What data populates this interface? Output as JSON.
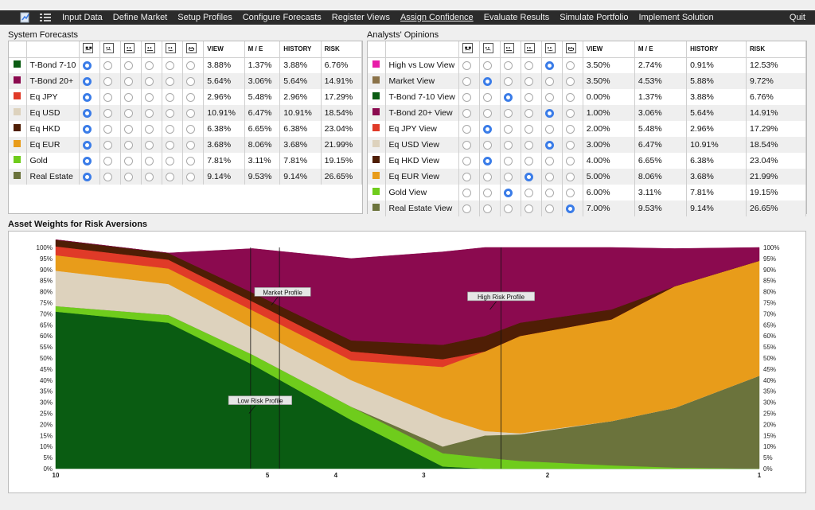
{
  "menu": {
    "items": [
      "Input Data",
      "Define Market",
      "Setup Profiles",
      "Configure Forecasts",
      "Register Views",
      "Assign Confidence",
      "Evaluate Results",
      "Simulate Portfolio",
      "Implement Solution"
    ],
    "active": "Assign Confidence",
    "quit": "Quit"
  },
  "system_forecasts": {
    "title": "System Forecasts",
    "columns": [
      "VIEW",
      "M / E",
      "HISTORY",
      "RISK"
    ],
    "rows": [
      {
        "color": "#0a5c12",
        "name": "T-Bond 7-10",
        "sel": 0,
        "view": "3.88%",
        "me": "1.37%",
        "history": "3.88%",
        "risk": "6.76%"
      },
      {
        "color": "#8b0a4f",
        "name": "T-Bond 20+",
        "sel": 0,
        "view": "5.64%",
        "me": "3.06%",
        "history": "5.64%",
        "risk": "14.91%"
      },
      {
        "color": "#e03a28",
        "name": "Eq JPY",
        "sel": 0,
        "view": "2.96%",
        "me": "5.48%",
        "history": "2.96%",
        "risk": "17.29%"
      },
      {
        "color": "#ddd2bd",
        "name": "Eq USD",
        "sel": 0,
        "view": "10.91%",
        "me": "6.47%",
        "history": "10.91%",
        "risk": "18.54%"
      },
      {
        "color": "#4f1e05",
        "name": "Eq HKD",
        "sel": 0,
        "view": "6.38%",
        "me": "6.65%",
        "history": "6.38%",
        "risk": "23.04%"
      },
      {
        "color": "#e89c1a",
        "name": "Eq EUR",
        "sel": 0,
        "view": "3.68%",
        "me": "8.06%",
        "history": "3.68%",
        "risk": "21.99%"
      },
      {
        "color": "#6fcc1c",
        "name": "Gold",
        "sel": 0,
        "view": "7.81%",
        "me": "3.11%",
        "history": "7.81%",
        "risk": "19.15%"
      },
      {
        "color": "#6b733c",
        "name": "Real Estate",
        "sel": 0,
        "view": "9.14%",
        "me": "9.53%",
        "history": "9.14%",
        "risk": "26.65%"
      }
    ]
  },
  "analysts_opinions": {
    "title": "Analysts' Opinions",
    "columns": [
      "VIEW",
      "M / E",
      "HISTORY",
      "RISK"
    ],
    "rows": [
      {
        "color": "#e81ca8",
        "name": "High vs Low View",
        "sel": 4,
        "view": "3.50%",
        "me": "2.74%",
        "history": "0.91%",
        "risk": "12.53%"
      },
      {
        "color": "#8a7248",
        "name": "Market View",
        "sel": 1,
        "view": "3.50%",
        "me": "4.53%",
        "history": "5.88%",
        "risk": "9.72%"
      },
      {
        "color": "#0a5c12",
        "name": "T-Bond 7-10 View",
        "sel": 2,
        "view": "0.00%",
        "me": "1.37%",
        "history": "3.88%",
        "risk": "6.76%"
      },
      {
        "color": "#8b0a4f",
        "name": "T-Bond 20+ View",
        "sel": 4,
        "view": "1.00%",
        "me": "3.06%",
        "history": "5.64%",
        "risk": "14.91%"
      },
      {
        "color": "#e03a28",
        "name": "Eq JPY View",
        "sel": 1,
        "view": "2.00%",
        "me": "5.48%",
        "history": "2.96%",
        "risk": "17.29%"
      },
      {
        "color": "#ddd2bd",
        "name": "Eq USD View",
        "sel": 4,
        "view": "3.00%",
        "me": "6.47%",
        "history": "10.91%",
        "risk": "18.54%"
      },
      {
        "color": "#4f1e05",
        "name": "Eq HKD View",
        "sel": 1,
        "view": "4.00%",
        "me": "6.65%",
        "history": "6.38%",
        "risk": "23.04%"
      },
      {
        "color": "#e89c1a",
        "name": "Eq EUR View",
        "sel": 3,
        "view": "5.00%",
        "me": "8.06%",
        "history": "3.68%",
        "risk": "21.99%"
      },
      {
        "color": "#6fcc1c",
        "name": "Gold View",
        "sel": 2,
        "view": "6.00%",
        "me": "3.11%",
        "history": "7.81%",
        "risk": "19.15%"
      },
      {
        "color": "#6b733c",
        "name": "Real Estate View",
        "sel": 5,
        "view": "7.00%",
        "me": "9.53%",
        "history": "9.14%",
        "risk": "26.65%"
      }
    ]
  },
  "chart_title": "Asset Weights for Risk Aversions",
  "chart_data": {
    "type": "area",
    "title": "Asset Weights for Risk Aversions",
    "x_ticks": [
      "10",
      "5",
      "4",
      "3",
      "2",
      "1"
    ],
    "y_ticks": [
      "0%",
      "5%",
      "10%",
      "15%",
      "20%",
      "25%",
      "30%",
      "35%",
      "40%",
      "45%",
      "50%",
      "55%",
      "60%",
      "65%",
      "70%",
      "75%",
      "80%",
      "85%",
      "90%",
      "95%",
      "100%"
    ],
    "ylim": [
      0,
      100
    ],
    "x": [
      0,
      0.16,
      0.28,
      0.42,
      0.55,
      0.61,
      0.66,
      0.79,
      0.88,
      1.0
    ],
    "series": [
      {
        "name": "T-Bond 7-10",
        "color": "#0a5c12",
        "values": [
          71,
          66,
          47,
          22,
          1,
          0,
          0,
          0,
          0,
          0
        ]
      },
      {
        "name": "Gold",
        "color": "#6fcc1c",
        "values": [
          2.5,
          3.5,
          4.5,
          6,
          6,
          5,
          3.5,
          1.5,
          0.5,
          0
        ]
      },
      {
        "name": "Real Estate",
        "color": "#6b733c",
        "values": [
          0,
          0,
          0,
          0,
          3,
          10,
          12,
          20,
          27,
          42
        ]
      },
      {
        "name": "Eq USD",
        "color": "#ddd2bd",
        "values": [
          16,
          14,
          12,
          12,
          13,
          2,
          0.5,
          0,
          0,
          0
        ]
      },
      {
        "name": "Eq EUR",
        "color": "#e89c1a",
        "values": [
          7,
          7,
          8,
          9,
          23,
          36,
          44,
          46,
          55,
          52
        ]
      },
      {
        "name": "Eq JPY",
        "color": "#e03a28",
        "values": [
          4,
          4,
          4,
          4,
          3.5,
          0,
          0,
          0,
          0,
          0
        ]
      },
      {
        "name": "Eq HKD",
        "color": "#4f1e05",
        "values": [
          3,
          3,
          4,
          5,
          6.5,
          7,
          6,
          4.5,
          0,
          0
        ]
      },
      {
        "name": "T-Bond 20+",
        "color": "#8b0a4f",
        "values": [
          0,
          0,
          20,
          37,
          42,
          40,
          34,
          28,
          17,
          6
        ]
      }
    ],
    "markers": [
      {
        "label": "Low Risk Profile",
        "x": 0.277
      },
      {
        "label": "Market Profile",
        "x": 0.318
      },
      {
        "label": "High Risk Profile",
        "x": 0.633
      }
    ]
  }
}
